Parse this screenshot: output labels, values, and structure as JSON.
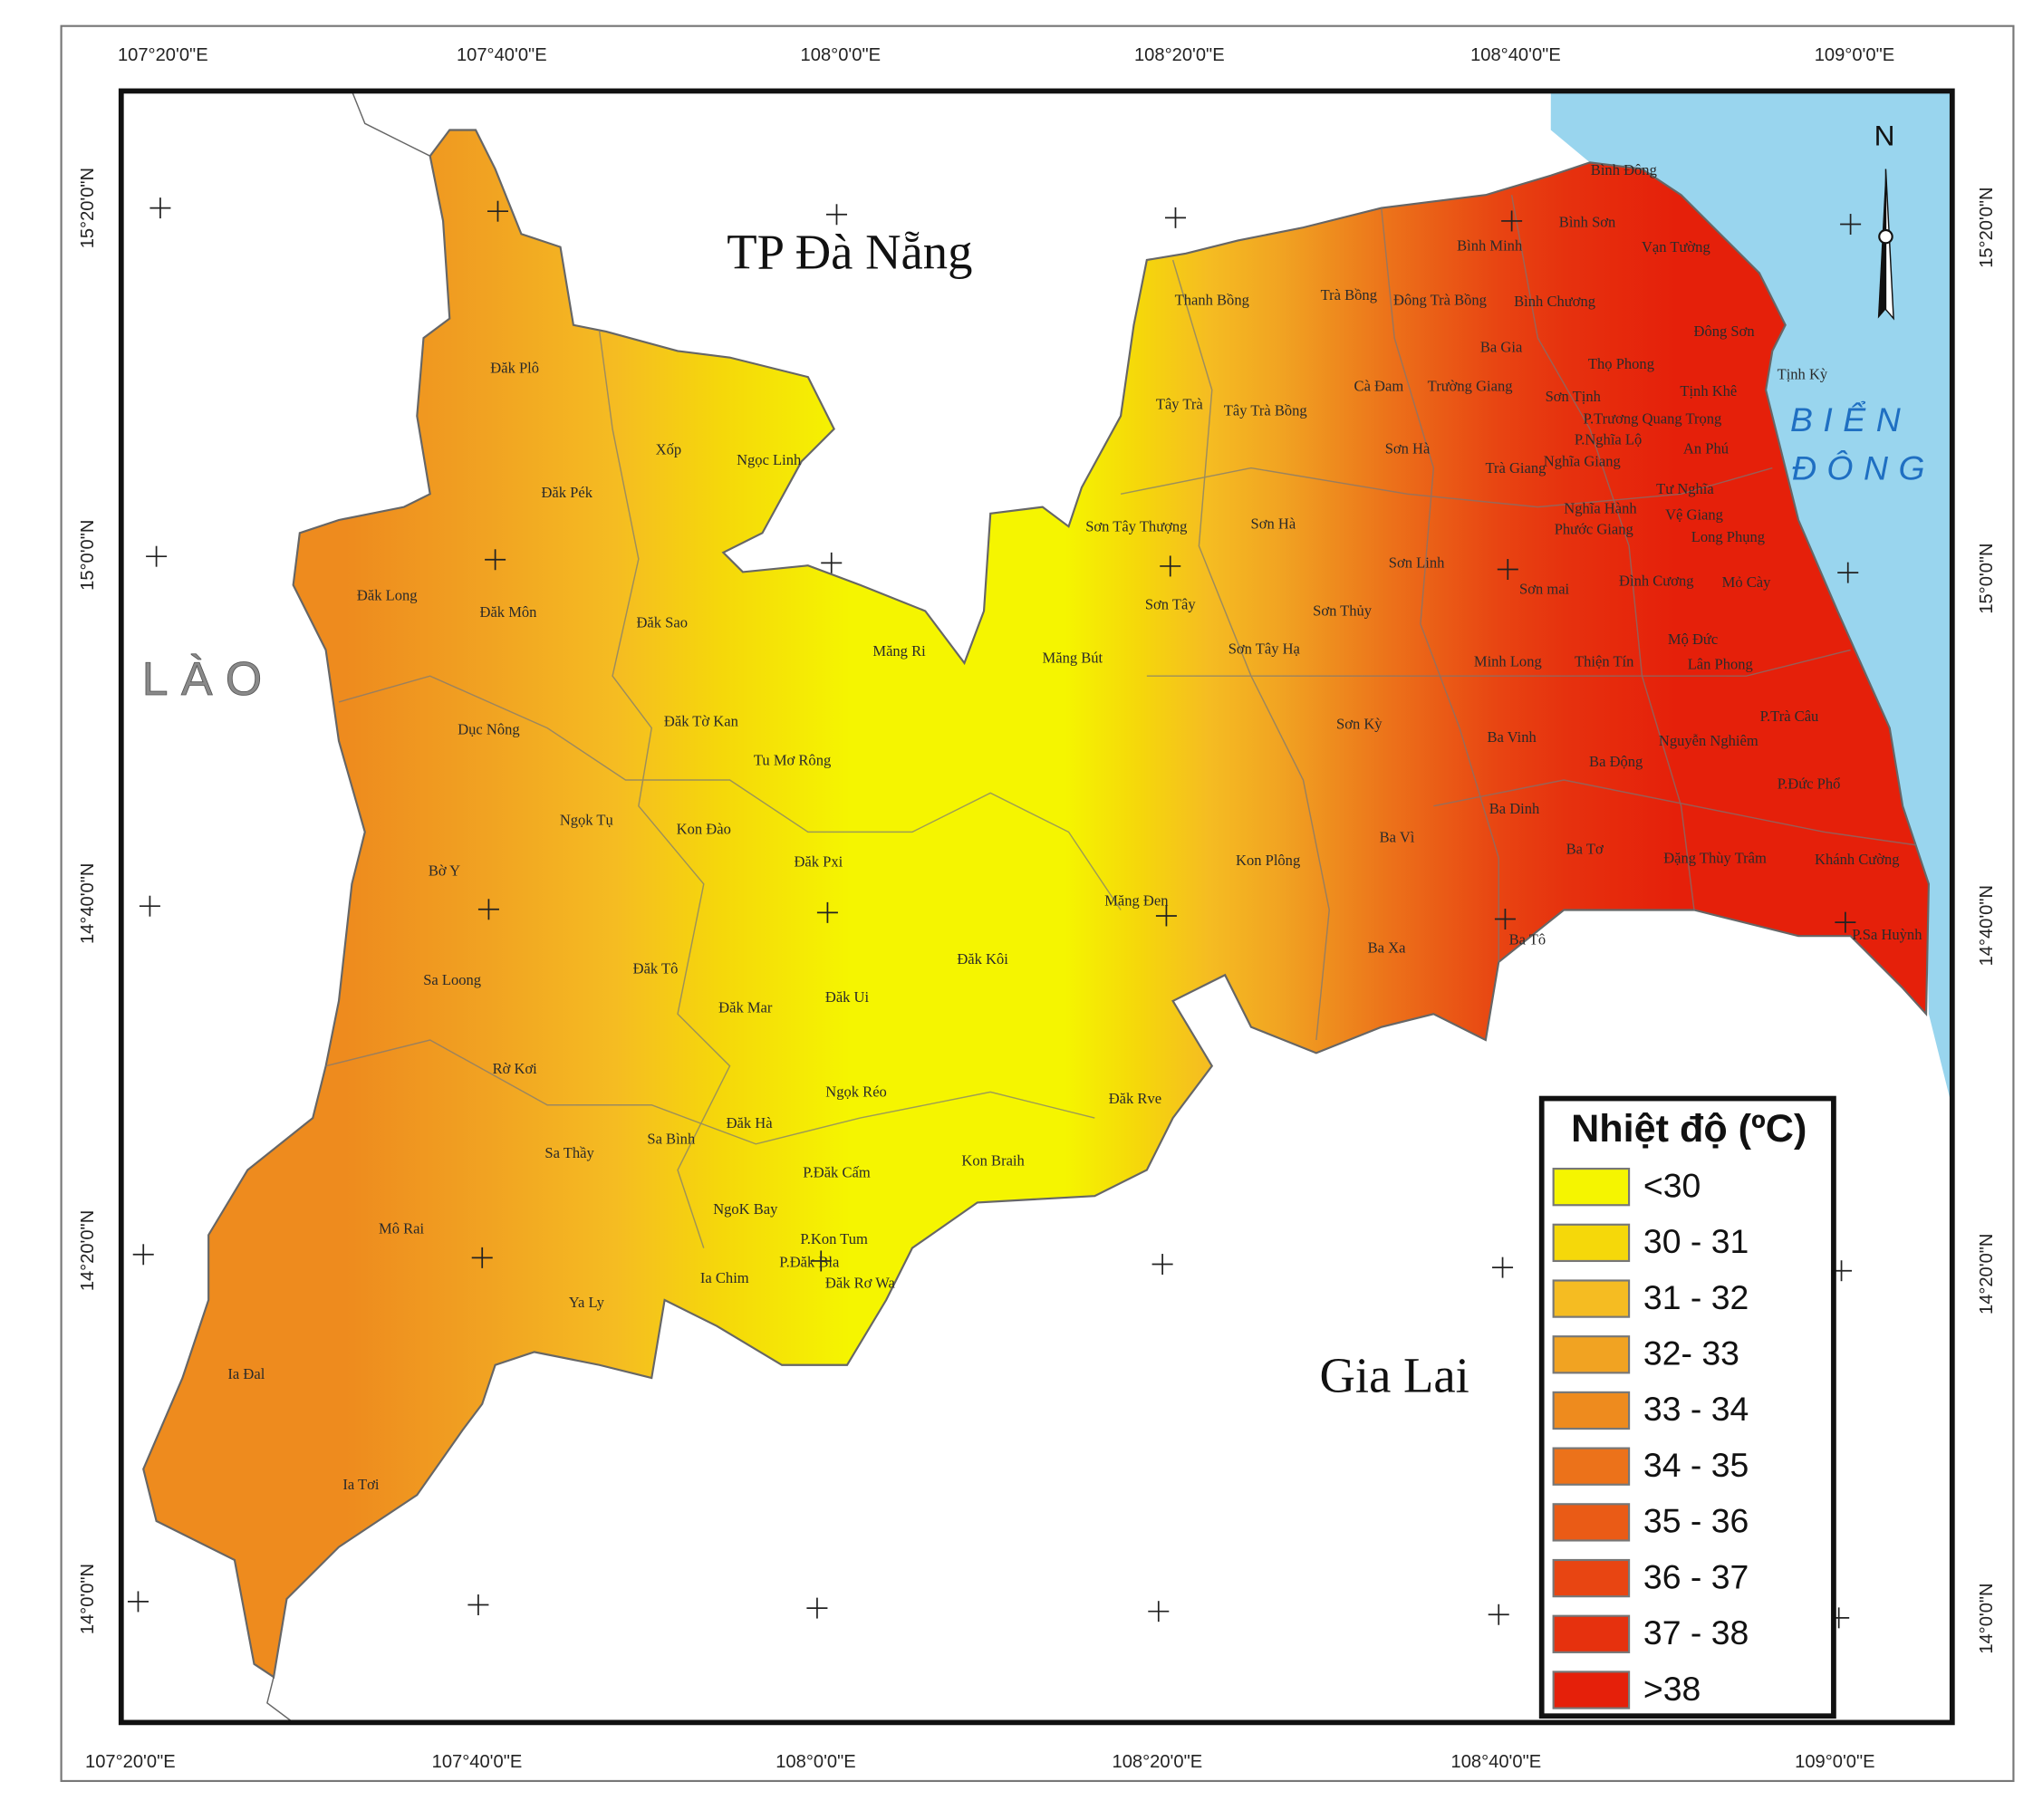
{
  "frame": {
    "top_labels": [
      "107°20'0\"E",
      "107°40'0\"E",
      "108°0'0\"E",
      "108°20'0\"E",
      "108°40'0\"E",
      "109°0'0\"E"
    ],
    "bottom_labels": [
      "107°20'0\"E",
      "107°40'0\"E",
      "108°0'0\"E",
      "108°20'0\"E",
      "108°40'0\"E",
      "109°0'0\"E"
    ],
    "left_labels": [
      "15°20'0\"N",
      "15°0'0\"N",
      "14°40'0\"N",
      "14°20'0\"N",
      "14°0'0\"N"
    ],
    "right_labels": [
      "15°20'0\"N",
      "15°0'0\"N",
      "14°40'0\"N",
      "14°20'0\"N",
      "14°0'0\"N"
    ]
  },
  "labels": {
    "north": "N",
    "country": "LÀO",
    "sea": [
      "BIỂN",
      "ĐÔNG"
    ],
    "provinces": [
      "TP Đà Nẵng",
      "Gia Lai"
    ]
  },
  "places": [
    "Đăk Plô",
    "Đăk Pék",
    "Xốp",
    "Ngọc Linh",
    "Đăk Long",
    "Đăk Môn",
    "Đăk Sao",
    "Măng Ri",
    "Đăk Tờ Kan",
    "Dục Nông",
    "Tu Mơ Rông",
    "Ngọk Tụ",
    "Kon Đào",
    "Đăk Pxi",
    "Bờ Y",
    "Măng Bút",
    "Kon Plông",
    "Măng Đen",
    "Đăk Kôi",
    "Đăk Tô",
    "Sa Loong",
    "Đăk Mar",
    "Đăk Ui",
    "Rờ Kơi",
    "Ngọk Réo",
    "Đăk Rve",
    "Sa Bình",
    "Đăk Hà",
    "Sa Thầy",
    "Kon Braih",
    "P.Đăk Cấm",
    "NgoK Bay",
    "P.Kon Tum",
    "P.Đăk Bla",
    "Đăk Rơ Wa",
    "Ia Chim",
    "Mô Rai",
    "Ya Ly",
    "Ia Đal",
    "Ia Tơi",
    "Thanh Bồng",
    "Trà Bồng",
    "Đông Trà Bồng",
    "Bình Chương",
    "Bình Minh",
    "Bình Sơn",
    "Bình Đông",
    "Vạn Tường",
    "Đông Sơn",
    "Ba Gia",
    "Thọ Phong",
    "Tịnh Kỳ",
    "Cà Đam",
    "Trường Giang",
    "Sơn Tịnh",
    "Tịnh Khê",
    "Tây Trà",
    "Tây Trà Bồng",
    "P.Trương Quang Trọng",
    "P.Nghĩa Lộ",
    "An Phú",
    "Sơn Hà",
    "Nghĩa Giang",
    "Trà Giang",
    "Tư Nghĩa",
    "Nghĩa Hành",
    "Vệ Giang",
    "Phước Giang",
    "Long Phụng",
    "Sơn Tây Thượng",
    "Sơn Hà",
    "Sơn Linh",
    "Sơn mai",
    "Đình Cương",
    "Mỏ Cày",
    "Sơn Tây",
    "Sơn Thủy",
    "Sơn Tây Hạ",
    "Mộ Đức",
    "Minh Long",
    "Thiện Tín",
    "Lân Phong",
    "Sơn Kỳ",
    "P.Trà Câu",
    "Ba Vinh",
    "Nguyễn Nghiêm",
    "Ba Động",
    "P.Đức Phổ",
    "Ba Dinh",
    "Ba Vì",
    "Ba Tơ",
    "Đặng Thùy Trâm",
    "Khánh Cường",
    "Ba Tô",
    "Ba Xa",
    "P.Sa Huỳnh"
  ],
  "legend": {
    "title": "Nhiệt độ (ºC)",
    "classes": [
      {
        "label": "<30",
        "color": "#f5f500"
      },
      {
        "label": "30 - 31",
        "color": "#f5d80a"
      },
      {
        "label": "31 - 32",
        "color": "#f5bc22"
      },
      {
        "label": "32- 33",
        "color": "#f1a322"
      },
      {
        "label": "33 - 34",
        "color": "#ee8b1e"
      },
      {
        "label": "34 - 35",
        "color": "#ec721a"
      },
      {
        "label": "35 - 36",
        "color": "#ea5b16"
      },
      {
        "label": "36 - 37",
        "color": "#e84512"
      },
      {
        "label": "37 - 38",
        "color": "#e6310e"
      },
      {
        "label": ">38",
        "color": "#e5200a"
      }
    ]
  }
}
